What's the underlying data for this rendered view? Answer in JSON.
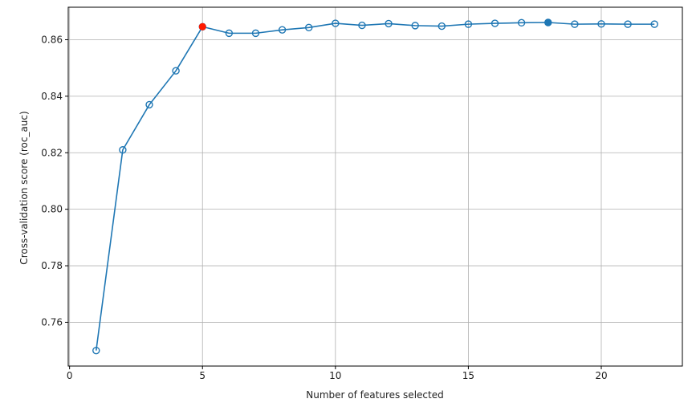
{
  "chart_data": {
    "type": "line",
    "xlabel": "Number of features selected",
    "ylabel": "Cross-validation score (roc_auc)",
    "xlim": [
      -0.05,
      23.05
    ],
    "ylim": [
      0.7445,
      0.8715
    ],
    "x_ticks": [
      0,
      5,
      10,
      15,
      20
    ],
    "y_ticks": [
      0.76,
      0.78,
      0.8,
      0.82,
      0.84,
      0.86
    ],
    "x_tick_labels": [
      "0",
      "5",
      "10",
      "15",
      "20"
    ],
    "y_tick_labels": [
      "0.76",
      "0.78",
      "0.80",
      "0.82",
      "0.84",
      "0.86"
    ],
    "grid": true,
    "x": [
      1,
      2,
      3,
      4,
      5,
      6,
      7,
      8,
      9,
      10,
      11,
      12,
      13,
      14,
      15,
      16,
      17,
      18,
      19,
      20,
      21,
      22
    ],
    "values": [
      0.75,
      0.821,
      0.837,
      0.849,
      0.8646,
      0.8623,
      0.8623,
      0.8635,
      0.8643,
      0.8658,
      0.8651,
      0.8657,
      0.865,
      0.8648,
      0.8655,
      0.8658,
      0.866,
      0.8661,
      0.8655,
      0.8656,
      0.8655,
      0.8655
    ],
    "highlights": [
      {
        "x": 5,
        "y": 0.8646,
        "color": "#ff1a00"
      },
      {
        "x": 18,
        "y": 0.8661,
        "color": "#1f77b4"
      }
    ],
    "colors": {
      "line": "#1f77b4",
      "grid": "#b0b0b0",
      "axes": "#000000"
    }
  }
}
